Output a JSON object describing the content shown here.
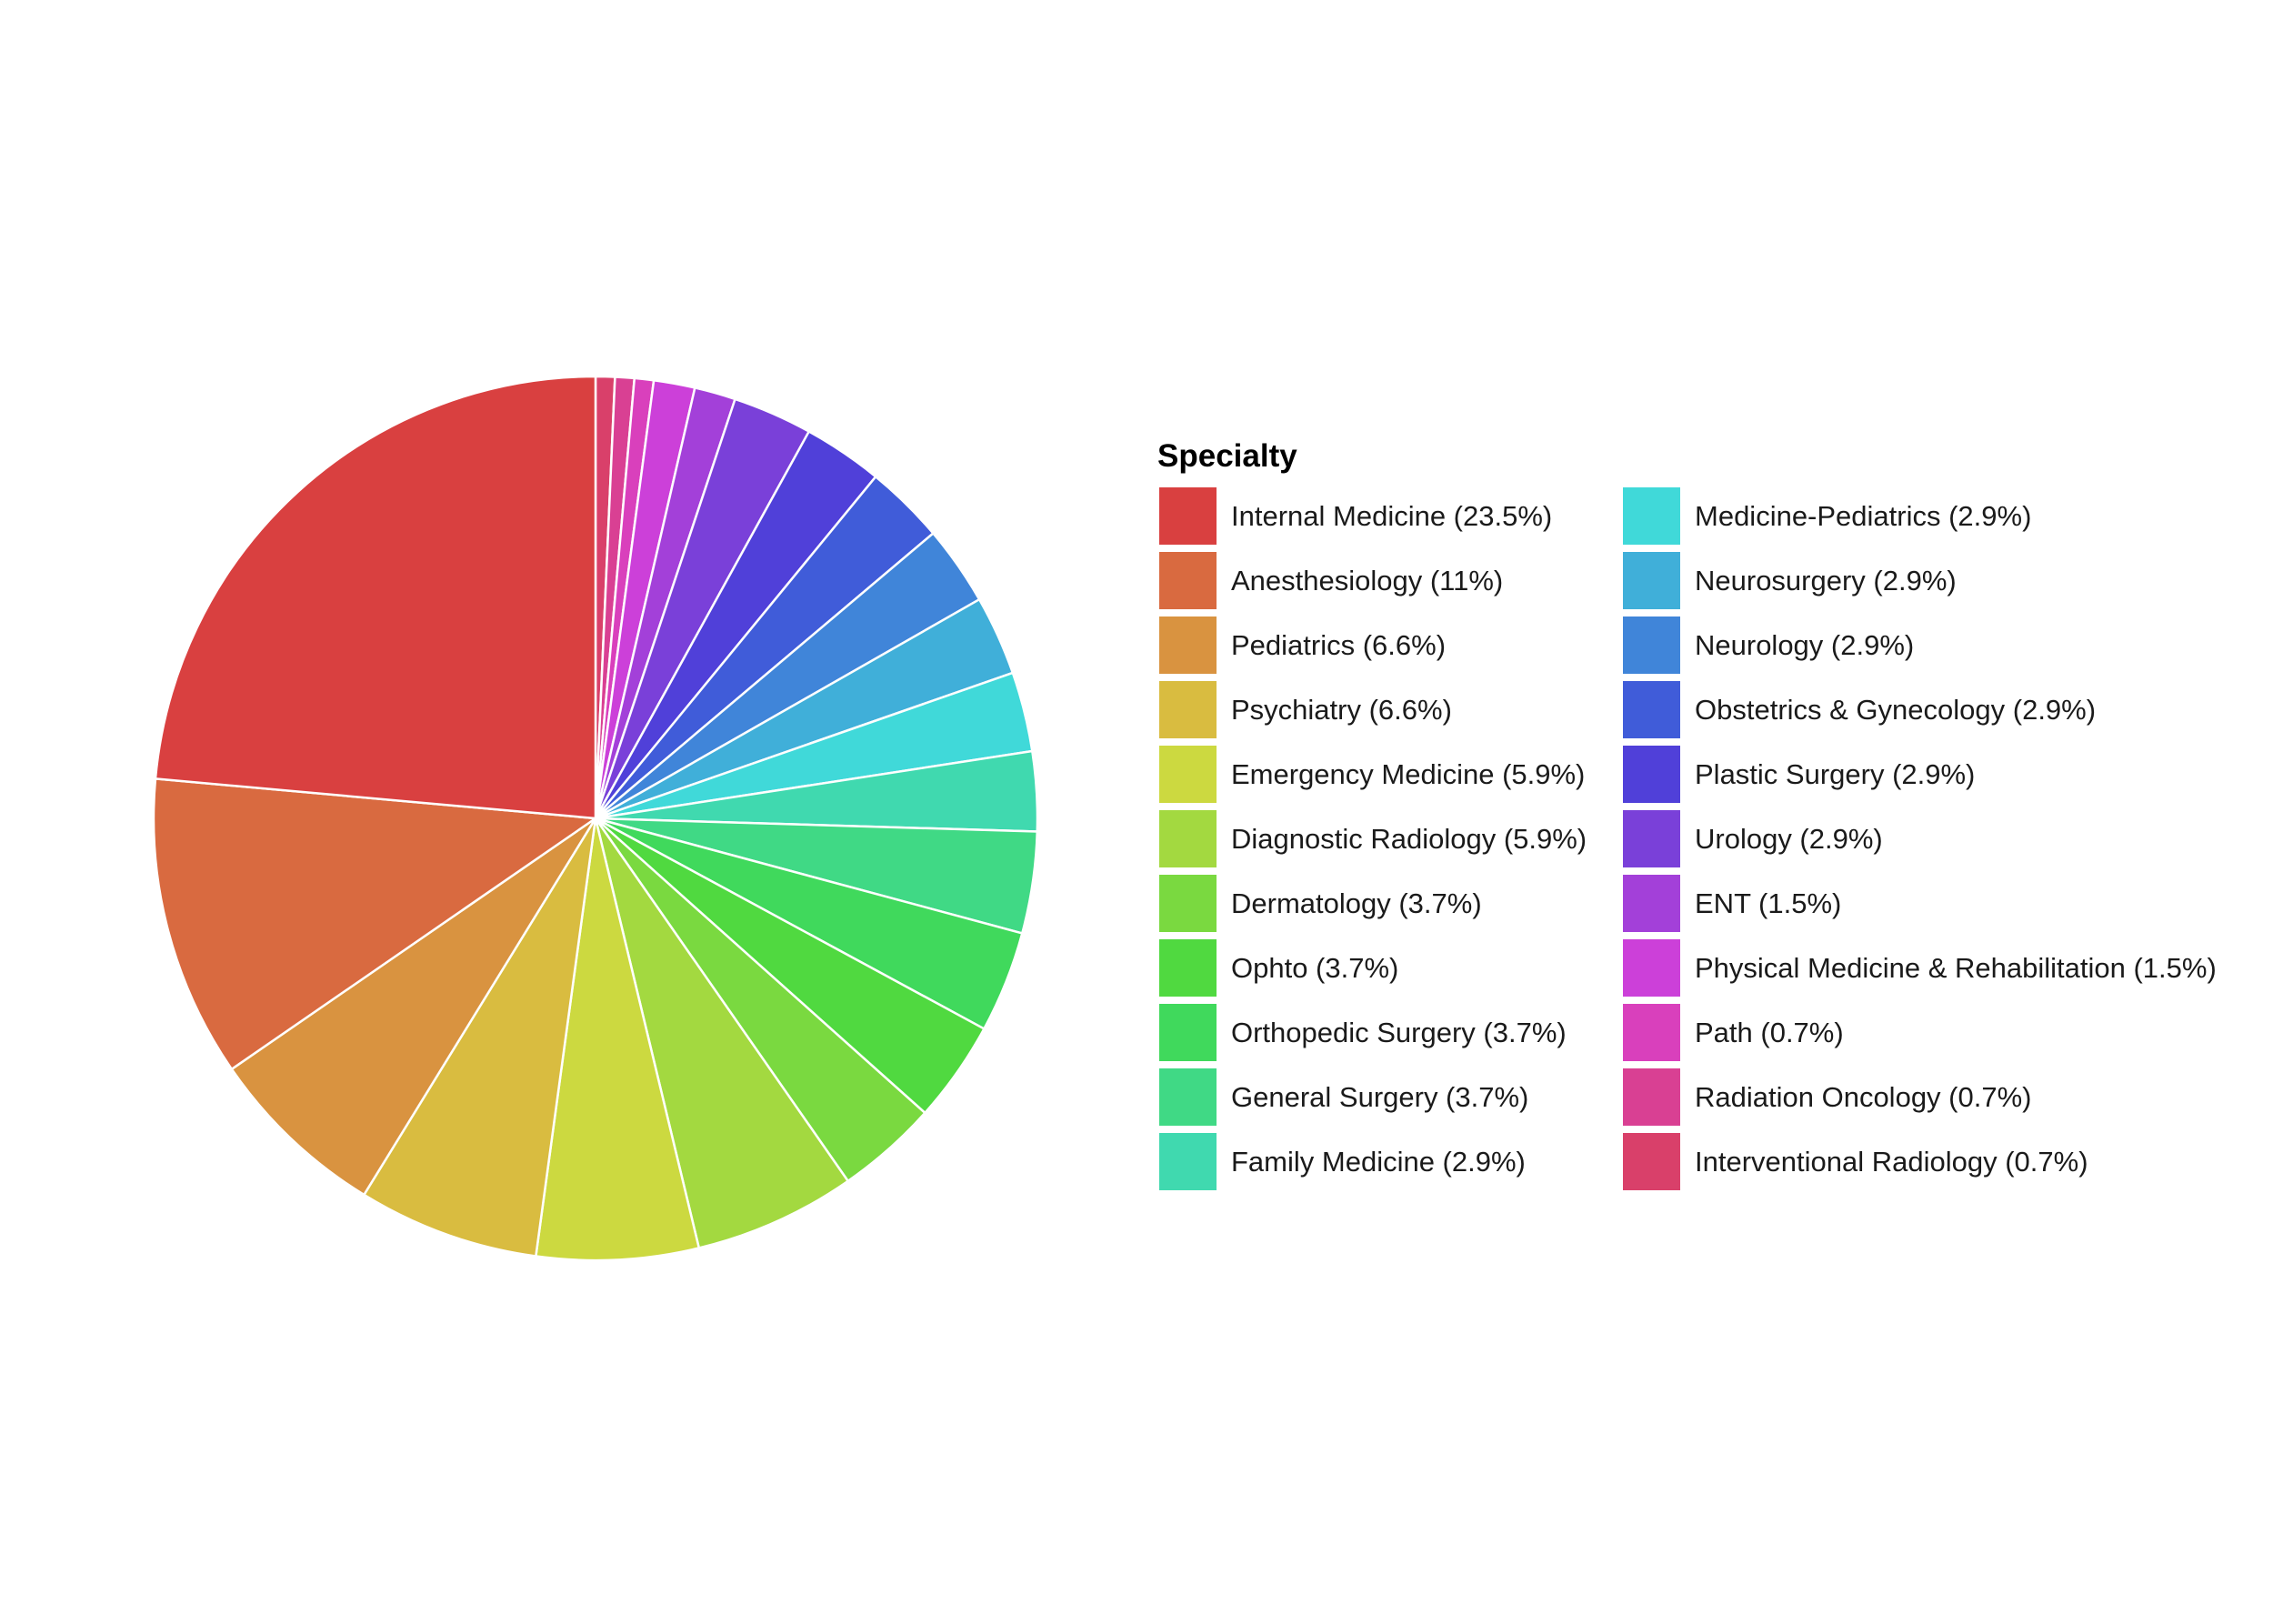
{
  "chart_data": {
    "type": "pie",
    "legend_title": "Specialty",
    "legend_placement": "right",
    "slices": [
      {
        "label": "Internal Medicine (23.5%)",
        "value": 23.5,
        "color": "#D94040"
      },
      {
        "label": "Anesthesiology (11%)",
        "value": 11.0,
        "color": "#D96A40"
      },
      {
        "label": "Pediatrics (6.6%)",
        "value": 6.6,
        "color": "#D99340"
      },
      {
        "label": "Psychiatry (6.6%)",
        "value": 6.6,
        "color": "#D9BC40"
      },
      {
        "label": "Emergency Medicine (5.9%)",
        "value": 5.9,
        "color": "#CCD940"
      },
      {
        "label": "Diagnostic Radiology (5.9%)",
        "value": 5.9,
        "color": "#A3D940"
      },
      {
        "label": "Dermatology (3.7%)",
        "value": 3.7,
        "color": "#7AD940"
      },
      {
        "label": "Ophto (3.7%)",
        "value": 3.7,
        "color": "#50D940"
      },
      {
        "label": "Orthopedic Surgery (3.7%)",
        "value": 3.7,
        "color": "#40D95C"
      },
      {
        "label": "General Surgery (3.7%)",
        "value": 3.7,
        "color": "#40D985"
      },
      {
        "label": "Family Medicine (2.9%)",
        "value": 2.9,
        "color": "#40D9AF"
      },
      {
        "label": "Medicine-Pediatrics (2.9%)",
        "value": 2.9,
        "color": "#40D9D9"
      },
      {
        "label": "Neurosurgery (2.9%)",
        "value": 2.9,
        "color": "#40AFD9"
      },
      {
        "label": "Neurology (2.9%)",
        "value": 2.9,
        "color": "#4085D9"
      },
      {
        "label": "Obstetrics & Gynecology (2.9%)",
        "value": 2.9,
        "color": "#405CD9"
      },
      {
        "label": "Plastic Surgery (2.9%)",
        "value": 2.9,
        "color": "#5040D9"
      },
      {
        "label": "Urology (2.9%)",
        "value": 2.9,
        "color": "#7A40D9"
      },
      {
        "label": "ENT (1.5%)",
        "value": 1.5,
        "color": "#A340D9"
      },
      {
        "label": "Physical Medicine & Rehabilitation (1.5%)",
        "value": 1.5,
        "color": "#CC40D9"
      },
      {
        "label": "Path (0.7%)",
        "value": 0.7,
        "color": "#D940BC"
      },
      {
        "label": "Radiation Oncology (0.7%)",
        "value": 0.7,
        "color": "#D94093"
      },
      {
        "label": "Interventional Radiology (0.7%)",
        "value": 0.7,
        "color": "#D9406A"
      }
    ]
  }
}
